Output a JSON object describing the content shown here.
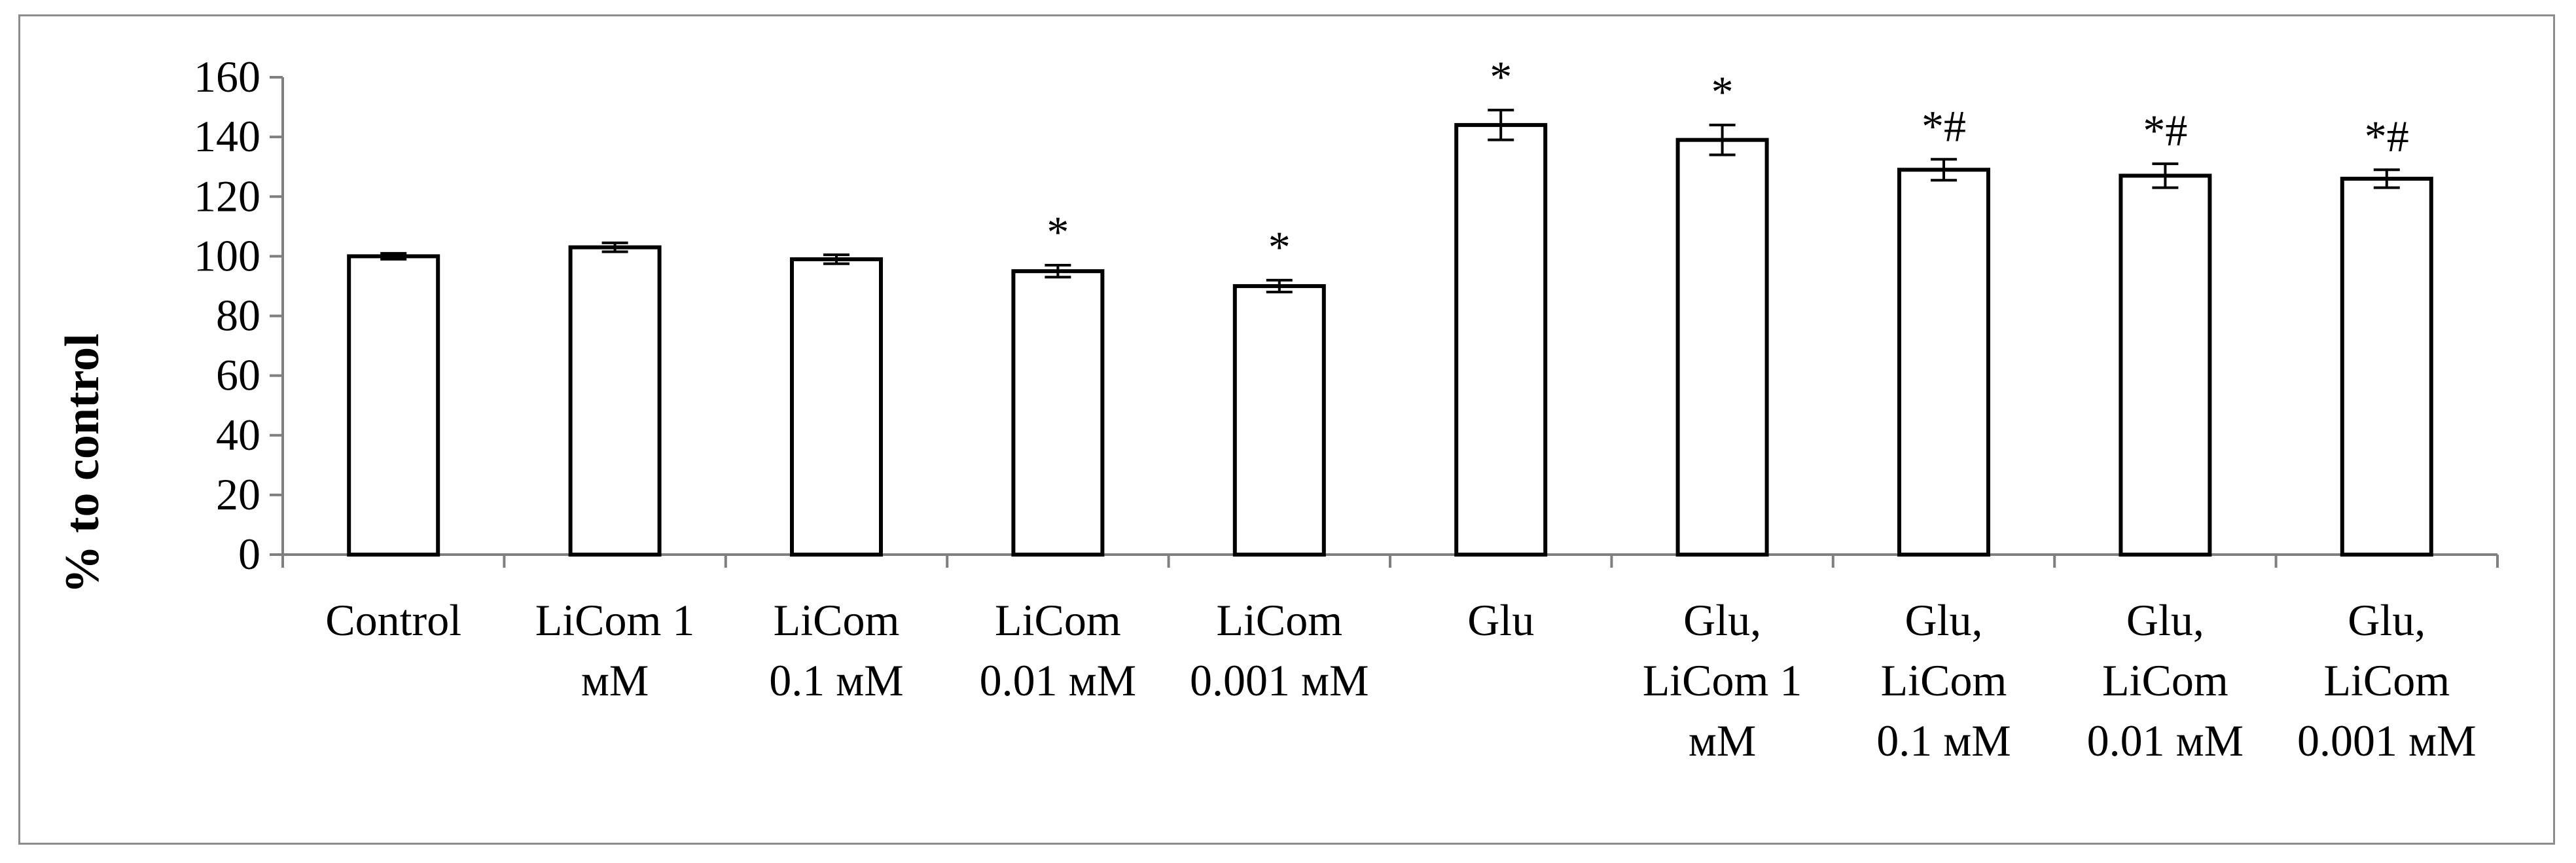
{
  "chart_data": {
    "type": "bar",
    "title": "",
    "xlabel": "",
    "ylabel": "% to control",
    "ylim": [
      0,
      160
    ],
    "yticks": [
      0,
      20,
      40,
      60,
      80,
      100,
      120,
      140,
      160
    ],
    "grid": false,
    "categories": [
      [
        "Control"
      ],
      [
        "LiCom 1",
        "мМ"
      ],
      [
        "LiCom",
        "0.1 мМ"
      ],
      [
        "LiCom",
        "0.01 мМ"
      ],
      [
        "LiCom",
        "0.001 мМ"
      ],
      [
        "Glu"
      ],
      [
        "Glu,",
        "LiCom 1",
        "мМ"
      ],
      [
        "Glu,",
        "LiCom",
        "0.1 мМ"
      ],
      [
        "Glu,",
        "LiCom",
        "0.01 мМ"
      ],
      [
        "Glu,",
        "LiCom",
        "0.001 мМ"
      ]
    ],
    "values": [
      100,
      103,
      99,
      95,
      90,
      144,
      139,
      129,
      127,
      126
    ],
    "errors": [
      1,
      1.5,
      1.5,
      2,
      2,
      5,
      5,
      3.5,
      4,
      3
    ],
    "annotations": [
      "",
      "",
      "",
      "*",
      "*",
      "*",
      "*",
      "*#",
      "*#",
      "*#"
    ],
    "bar_fill": "#ffffff",
    "bar_stroke": "#000000"
  }
}
